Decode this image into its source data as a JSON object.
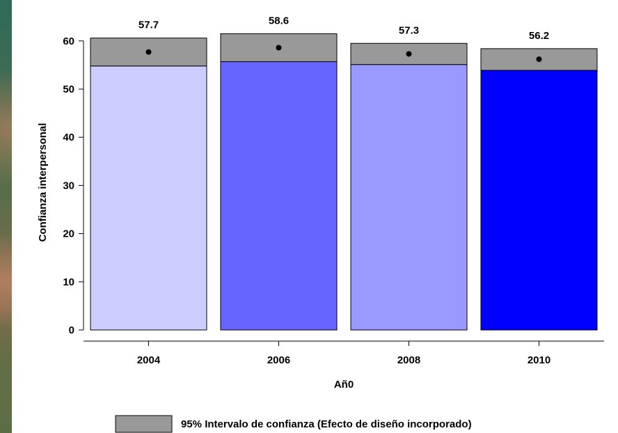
{
  "chart_data": {
    "type": "bar",
    "categories": [
      "2004",
      "2006",
      "2008",
      "2010"
    ],
    "values": [
      57.7,
      58.6,
      57.3,
      56.2
    ],
    "value_labels": [
      "57.7",
      "58.6",
      "57.3",
      "56.2"
    ],
    "ci_lower": [
      54.8,
      55.7,
      55.1,
      53.9
    ],
    "ci_upper": [
      60.6,
      61.5,
      59.5,
      58.4
    ],
    "bar_colors": [
      "#ccccff",
      "#6666ff",
      "#9999ff",
      "#0000ff"
    ],
    "ci_color": "#999999",
    "xlabel": "Añ0",
    "ylabel": "Confianza interpersonal",
    "ylim": [
      0,
      62
    ],
    "yticks": [
      0,
      10,
      20,
      30,
      40,
      50,
      60
    ],
    "grid": false,
    "legend": {
      "position": "bottom",
      "label": "95% Intervalo de confianza (Efecto de diseño incorporado)"
    }
  }
}
